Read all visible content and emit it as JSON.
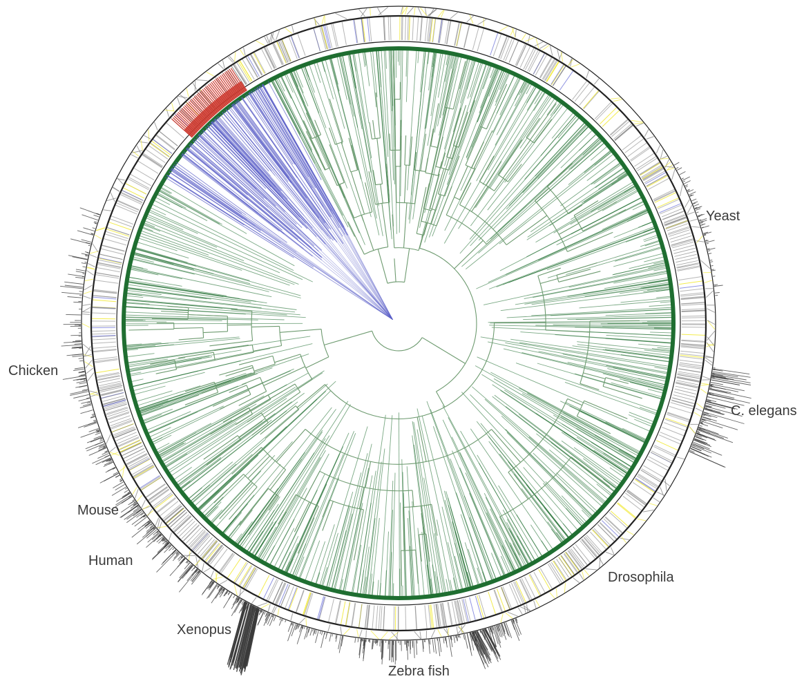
{
  "figure": {
    "colors": {
      "tree_main": "#1f6e31",
      "tree_branch_light": "#6d9a6f",
      "clade_blue": "#5b5fc7",
      "clade_red": "#cc3a2f",
      "ring_outline": "#222222",
      "ring_tick_gray": "#7a7a7a",
      "ring_tick_blue": "#6b70d8",
      "ring_tick_yellow": "#f2ea3a",
      "spike_dark": "#3b3b3b",
      "label_text": "#3a3a3a"
    },
    "species_labels": [
      "Yeast",
      "C. elegans",
      "Drosophila",
      "Zebra fish",
      "Xenopus",
      "Human",
      "Mouse",
      "Chicken"
    ]
  }
}
